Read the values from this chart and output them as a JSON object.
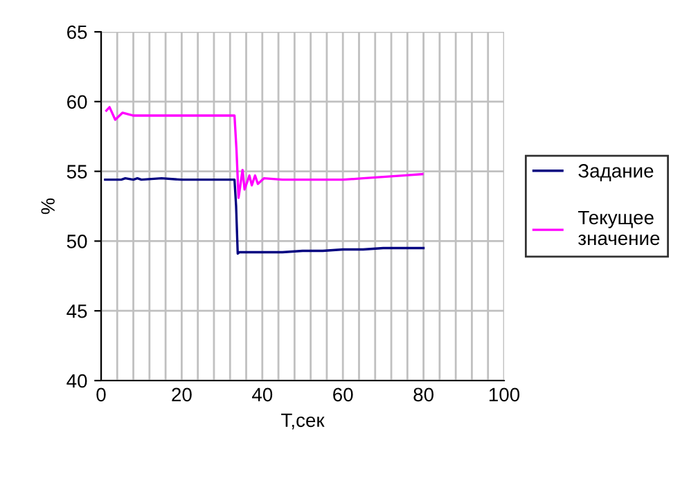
{
  "chart_data": {
    "type": "line",
    "xlabel": "T,сек",
    "ylabel": "%",
    "xlim": [
      0,
      100
    ],
    "ylim": [
      40,
      65
    ],
    "xticks": [
      0,
      {
        "value": 4,
        "label": null
      },
      {
        "value": 8,
        "label": null
      },
      {
        "value": 12,
        "label": null
      },
      {
        "value": 16,
        "label": null
      },
      20,
      {
        "value": 24,
        "label": null
      },
      {
        "value": 28,
        "label": null
      },
      {
        "value": 32,
        "label": null
      },
      {
        "value": 36,
        "label": null
      },
      40,
      {
        "value": 44,
        "label": null
      },
      {
        "value": 48,
        "label": null
      },
      {
        "value": 52,
        "label": null
      },
      {
        "value": 56,
        "label": null
      },
      60,
      {
        "value": 64,
        "label": null
      },
      {
        "value": 68,
        "label": null
      },
      {
        "value": 72,
        "label": null
      },
      {
        "value": 76,
        "label": null
      },
      80,
      {
        "value": 84,
        "label": null
      },
      {
        "value": 88,
        "label": null
      },
      {
        "value": 92,
        "label": null
      },
      {
        "value": 96,
        "label": null
      },
      100
    ],
    "yticks": [
      40,
      45,
      50,
      55,
      60,
      65
    ],
    "grid": true,
    "legend": "right",
    "marker": "none",
    "line_style": "solid",
    "series": [
      {
        "name": "Задание",
        "color": "#000080",
        "x": [
          1,
          5,
          6,
          8,
          9,
          10,
          15,
          20,
          25,
          30,
          33.1,
          33.5,
          33.9,
          34.3,
          40,
          45,
          50,
          55,
          60,
          65,
          70,
          75,
          80
        ],
        "values": [
          54.4,
          54.4,
          54.5,
          54.4,
          54.5,
          54.4,
          54.5,
          54.4,
          54.4,
          54.4,
          54.4,
          52.5,
          49.1,
          49.2,
          49.2,
          49.2,
          49.3,
          49.3,
          49.4,
          49.4,
          49.5,
          49.5,
          49.5
        ]
      },
      {
        "name": "Текущее значение",
        "color": "#ff00ff",
        "x": [
          1.3,
          2.1,
          3.5,
          5.3,
          7.9,
          33.1,
          33.6,
          34.1,
          35.1,
          35.6,
          36.8,
          37.4,
          38.2,
          38.9,
          40.4,
          45,
          50,
          55,
          60,
          65,
          70,
          75,
          79.7
        ],
        "values": [
          59.35,
          59.6,
          58.7,
          59.2,
          59.0,
          59.0,
          56.5,
          53.1,
          55.1,
          53.7,
          54.7,
          54.0,
          54.7,
          54.1,
          54.5,
          54.4,
          54.4,
          54.4,
          54.4,
          54.5,
          54.6,
          54.7,
          54.8
        ]
      }
    ]
  }
}
